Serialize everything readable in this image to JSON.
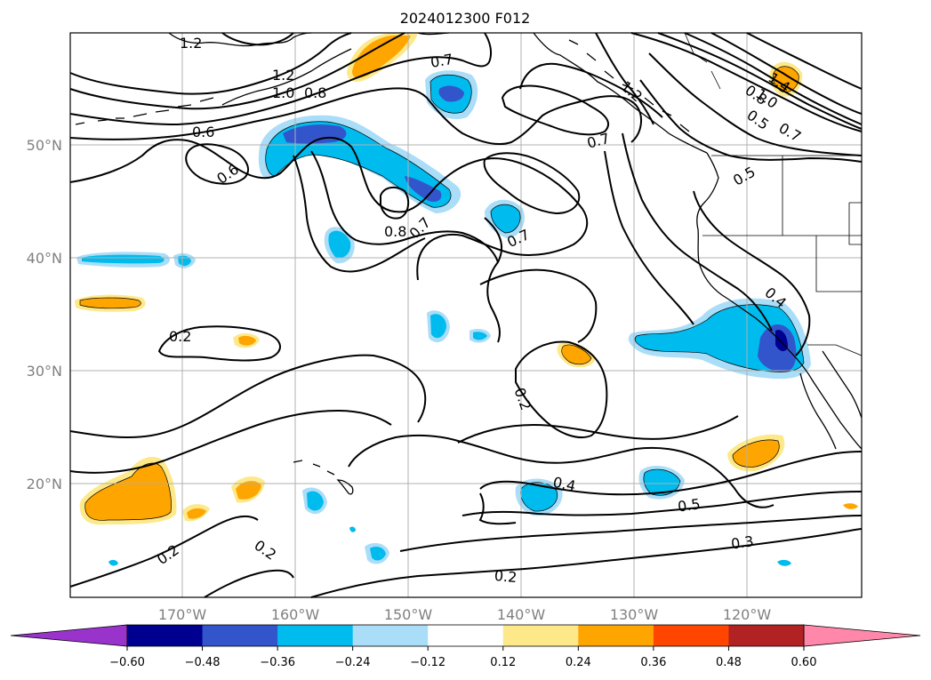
{
  "title": "2024012300 F012",
  "lon_labels": [
    "170°W",
    "160°W",
    "150°W",
    "140°W",
    "130°W",
    "120°W"
  ],
  "lat_labels": [
    "50°N",
    "40°N",
    "30°N",
    "20°N"
  ],
  "colorbar": {
    "ticks": [
      "−0.60",
      "−0.48",
      "−0.36",
      "−0.24",
      "−0.12",
      "0.12",
      "0.24",
      "0.36",
      "0.48",
      "0.60"
    ],
    "colors": {
      "under": "#9933cc",
      "bins": [
        "#000090",
        "#3355cc",
        "#00bbee",
        "#aaddf7",
        "#ffffff",
        "#fde98a",
        "#ffa500",
        "#ff4500",
        "#b22222"
      ],
      "over": "#ff88aa"
    }
  },
  "contour_labels": [
    {
      "id": "c1",
      "text": "1.2"
    },
    {
      "id": "c2",
      "text": "1.2"
    },
    {
      "id": "c3",
      "text": "1.0"
    },
    {
      "id": "c4",
      "text": "0.8"
    },
    {
      "id": "c5",
      "text": "0.6"
    },
    {
      "id": "c6",
      "text": "0.6"
    },
    {
      "id": "c7",
      "text": "0.7"
    },
    {
      "id": "c8",
      "text": "0.7"
    },
    {
      "id": "c9",
      "text": "0.8"
    },
    {
      "id": "c10",
      "text": "0.7"
    },
    {
      "id": "c11",
      "text": "0.7"
    },
    {
      "id": "c12",
      "text": "1.2"
    },
    {
      "id": "c13",
      "text": "1.4"
    },
    {
      "id": "c14",
      "text": "1.0"
    },
    {
      "id": "c15",
      "text": "0.8"
    },
    {
      "id": "c16",
      "text": "0.5"
    },
    {
      "id": "c17",
      "text": "0.7"
    },
    {
      "id": "c18",
      "text": "0.5"
    },
    {
      "id": "c19",
      "text": "0.4"
    },
    {
      "id": "c20",
      "text": "0.2"
    },
    {
      "id": "c21",
      "text": "0.2"
    },
    {
      "id": "c22",
      "text": "0.4"
    },
    {
      "id": "c23",
      "text": "0.5"
    },
    {
      "id": "c24",
      "text": "0.3"
    },
    {
      "id": "c25",
      "text": "0.2"
    },
    {
      "id": "c26",
      "text": "0.2"
    },
    {
      "id": "c27",
      "text": "0.2"
    }
  ]
}
